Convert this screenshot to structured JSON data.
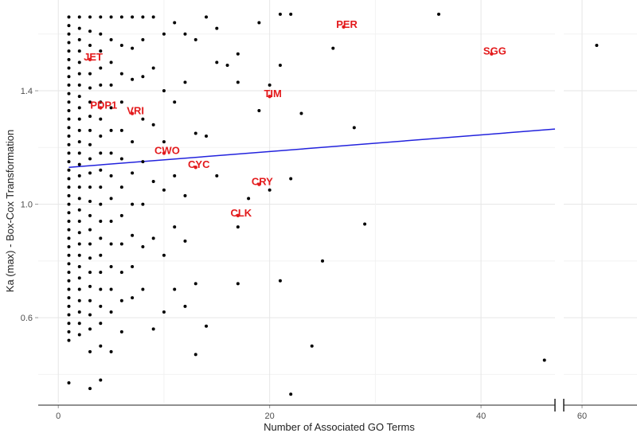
{
  "chart_data": {
    "type": "scatter",
    "title": "",
    "xlabel": "Number of Associated GO Terms",
    "ylabel": "Ka (max) - Box-Cox Transformation",
    "panels": [
      {
        "xlim": [
          -1.9,
          47
        ],
        "x_ticks": [
          0,
          20,
          40
        ],
        "x_tick_labels": [
          "0",
          "20",
          "40"
        ]
      },
      {
        "xlim": [
          57.5,
          67.5
        ],
        "x_ticks": [
          60
        ],
        "x_tick_labels": [
          "60"
        ]
      }
    ],
    "ylim": [
      0.3,
      1.72
    ],
    "y_ticks": [
      0.6,
      1.0,
      1.4
    ],
    "y_tick_labels": [
      "0.6",
      "1.0",
      "1.4"
    ],
    "grid": true,
    "highlight_color": "#e31a1c",
    "point_color": "#000000",
    "trend_color": "#2222dd",
    "trend_line": {
      "x": [
        1,
        47
      ],
      "y": [
        1.13,
        1.265
      ]
    },
    "highlighted": [
      {
        "label": "PER",
        "x": 27,
        "y": 1.625
      },
      {
        "label": "SGG",
        "x": 41,
        "y": 1.53
      },
      {
        "label": "JET",
        "x": 3,
        "y": 1.51
      },
      {
        "label": "TIM",
        "x": 20,
        "y": 1.38
      },
      {
        "label": "VRI",
        "x": 7,
        "y": 1.32
      },
      {
        "label": "PDP1",
        "x": 4,
        "y": 1.34
      },
      {
        "label": "CWO",
        "x": 10,
        "y": 1.18
      },
      {
        "label": "CYC",
        "x": 13,
        "y": 1.13
      },
      {
        "label": "CRY",
        "x": 19,
        "y": 1.07
      },
      {
        "label": "CLK",
        "x": 17,
        "y": 0.96
      }
    ],
    "points": [
      {
        "x": 1,
        "y": 1.66
      },
      {
        "x": 1,
        "y": 1.63
      },
      {
        "x": 1,
        "y": 1.6
      },
      {
        "x": 1,
        "y": 1.57
      },
      {
        "x": 1,
        "y": 1.54
      },
      {
        "x": 1,
        "y": 1.51
      },
      {
        "x": 1,
        "y": 1.48
      },
      {
        "x": 1,
        "y": 1.45
      },
      {
        "x": 1,
        "y": 1.42
      },
      {
        "x": 1,
        "y": 1.39
      },
      {
        "x": 1,
        "y": 1.36
      },
      {
        "x": 1,
        "y": 1.33
      },
      {
        "x": 1,
        "y": 1.3
      },
      {
        "x": 1,
        "y": 1.27
      },
      {
        "x": 1,
        "y": 1.24
      },
      {
        "x": 1,
        "y": 1.21
      },
      {
        "x": 1,
        "y": 1.18
      },
      {
        "x": 1,
        "y": 1.15
      },
      {
        "x": 1,
        "y": 1.12
      },
      {
        "x": 1,
        "y": 1.09
      },
      {
        "x": 1,
        "y": 1.06
      },
      {
        "x": 1,
        "y": 1.03
      },
      {
        "x": 1,
        "y": 1.0
      },
      {
        "x": 1,
        "y": 0.97
      },
      {
        "x": 1,
        "y": 0.94
      },
      {
        "x": 1,
        "y": 0.91
      },
      {
        "x": 1,
        "y": 0.88
      },
      {
        "x": 1,
        "y": 0.85
      },
      {
        "x": 1,
        "y": 0.82
      },
      {
        "x": 1,
        "y": 0.79
      },
      {
        "x": 1,
        "y": 0.76
      },
      {
        "x": 1,
        "y": 0.73
      },
      {
        "x": 1,
        "y": 0.7
      },
      {
        "x": 1,
        "y": 0.67
      },
      {
        "x": 1,
        "y": 0.64
      },
      {
        "x": 1,
        "y": 0.61
      },
      {
        "x": 1,
        "y": 0.58
      },
      {
        "x": 1,
        "y": 0.55
      },
      {
        "x": 1,
        "y": 0.52
      },
      {
        "x": 1,
        "y": 0.37
      },
      {
        "x": 2,
        "y": 1.66
      },
      {
        "x": 2,
        "y": 1.62
      },
      {
        "x": 2,
        "y": 1.58
      },
      {
        "x": 2,
        "y": 1.54
      },
      {
        "x": 2,
        "y": 1.5
      },
      {
        "x": 2,
        "y": 1.46
      },
      {
        "x": 2,
        "y": 1.42
      },
      {
        "x": 2,
        "y": 1.38
      },
      {
        "x": 2,
        "y": 1.34
      },
      {
        "x": 2,
        "y": 1.3
      },
      {
        "x": 2,
        "y": 1.26
      },
      {
        "x": 2,
        "y": 1.22
      },
      {
        "x": 2,
        "y": 1.18
      },
      {
        "x": 2,
        "y": 1.14
      },
      {
        "x": 2,
        "y": 1.1
      },
      {
        "x": 2,
        "y": 1.06
      },
      {
        "x": 2,
        "y": 1.02
      },
      {
        "x": 2,
        "y": 0.98
      },
      {
        "x": 2,
        "y": 0.94
      },
      {
        "x": 2,
        "y": 0.9
      },
      {
        "x": 2,
        "y": 0.86
      },
      {
        "x": 2,
        "y": 0.82
      },
      {
        "x": 2,
        "y": 0.78
      },
      {
        "x": 2,
        "y": 0.74
      },
      {
        "x": 2,
        "y": 0.7
      },
      {
        "x": 2,
        "y": 0.66
      },
      {
        "x": 2,
        "y": 0.62
      },
      {
        "x": 2,
        "y": 0.58
      },
      {
        "x": 2,
        "y": 0.54
      },
      {
        "x": 3,
        "y": 1.66
      },
      {
        "x": 3,
        "y": 1.61
      },
      {
        "x": 3,
        "y": 1.56
      },
      {
        "x": 3,
        "y": 1.46
      },
      {
        "x": 3,
        "y": 1.41
      },
      {
        "x": 3,
        "y": 1.36
      },
      {
        "x": 3,
        "y": 1.31
      },
      {
        "x": 3,
        "y": 1.26
      },
      {
        "x": 3,
        "y": 1.21
      },
      {
        "x": 3,
        "y": 1.16
      },
      {
        "x": 3,
        "y": 1.11
      },
      {
        "x": 3,
        "y": 1.06
      },
      {
        "x": 3,
        "y": 1.01
      },
      {
        "x": 3,
        "y": 0.96
      },
      {
        "x": 3,
        "y": 0.91
      },
      {
        "x": 3,
        "y": 0.86
      },
      {
        "x": 3,
        "y": 0.81
      },
      {
        "x": 3,
        "y": 0.76
      },
      {
        "x": 3,
        "y": 0.71
      },
      {
        "x": 3,
        "y": 0.66
      },
      {
        "x": 3,
        "y": 0.61
      },
      {
        "x": 3,
        "y": 0.56
      },
      {
        "x": 3,
        "y": 0.48
      },
      {
        "x": 3,
        "y": 0.35
      },
      {
        "x": 4,
        "y": 1.66
      },
      {
        "x": 4,
        "y": 1.6
      },
      {
        "x": 4,
        "y": 1.54
      },
      {
        "x": 4,
        "y": 1.48
      },
      {
        "x": 4,
        "y": 1.42
      },
      {
        "x": 4,
        "y": 1.36
      },
      {
        "x": 4,
        "y": 1.3
      },
      {
        "x": 4,
        "y": 1.24
      },
      {
        "x": 4,
        "y": 1.18
      },
      {
        "x": 4,
        "y": 1.12
      },
      {
        "x": 4,
        "y": 1.06
      },
      {
        "x": 4,
        "y": 1.0
      },
      {
        "x": 4,
        "y": 0.94
      },
      {
        "x": 4,
        "y": 0.88
      },
      {
        "x": 4,
        "y": 0.82
      },
      {
        "x": 4,
        "y": 0.76
      },
      {
        "x": 4,
        "y": 0.7
      },
      {
        "x": 4,
        "y": 0.64
      },
      {
        "x": 4,
        "y": 0.58
      },
      {
        "x": 4,
        "y": 0.5
      },
      {
        "x": 4,
        "y": 0.38
      },
      {
        "x": 5,
        "y": 1.66
      },
      {
        "x": 5,
        "y": 1.58
      },
      {
        "x": 5,
        "y": 1.5
      },
      {
        "x": 5,
        "y": 1.42
      },
      {
        "x": 5,
        "y": 1.34
      },
      {
        "x": 5,
        "y": 1.26
      },
      {
        "x": 5,
        "y": 1.18
      },
      {
        "x": 5,
        "y": 1.1
      },
      {
        "x": 5,
        "y": 1.02
      },
      {
        "x": 5,
        "y": 0.94
      },
      {
        "x": 5,
        "y": 0.86
      },
      {
        "x": 5,
        "y": 0.78
      },
      {
        "x": 5,
        "y": 0.7
      },
      {
        "x": 5,
        "y": 0.62
      },
      {
        "x": 5,
        "y": 0.48
      },
      {
        "x": 6,
        "y": 1.66
      },
      {
        "x": 6,
        "y": 1.56
      },
      {
        "x": 6,
        "y": 1.46
      },
      {
        "x": 6,
        "y": 1.36
      },
      {
        "x": 6,
        "y": 1.26
      },
      {
        "x": 6,
        "y": 1.16
      },
      {
        "x": 6,
        "y": 1.06
      },
      {
        "x": 6,
        "y": 0.96
      },
      {
        "x": 6,
        "y": 0.86
      },
      {
        "x": 6,
        "y": 0.76
      },
      {
        "x": 6,
        "y": 0.66
      },
      {
        "x": 6,
        "y": 0.55
      },
      {
        "x": 7,
        "y": 1.66
      },
      {
        "x": 7,
        "y": 1.55
      },
      {
        "x": 7,
        "y": 1.44
      },
      {
        "x": 7,
        "y": 1.22
      },
      {
        "x": 7,
        "y": 1.11
      },
      {
        "x": 7,
        "y": 1.0
      },
      {
        "x": 7,
        "y": 0.89
      },
      {
        "x": 7,
        "y": 0.78
      },
      {
        "x": 7,
        "y": 0.67
      },
      {
        "x": 8,
        "y": 1.66
      },
      {
        "x": 8,
        "y": 1.58
      },
      {
        "x": 8,
        "y": 1.45
      },
      {
        "x": 8,
        "y": 1.3
      },
      {
        "x": 8,
        "y": 1.15
      },
      {
        "x": 8,
        "y": 1.0
      },
      {
        "x": 8,
        "y": 0.85
      },
      {
        "x": 8,
        "y": 0.7
      },
      {
        "x": 9,
        "y": 1.66
      },
      {
        "x": 9,
        "y": 1.48
      },
      {
        "x": 9,
        "y": 1.28
      },
      {
        "x": 9,
        "y": 1.08
      },
      {
        "x": 9,
        "y": 0.88
      },
      {
        "x": 9,
        "y": 0.56
      },
      {
        "x": 10,
        "y": 1.6
      },
      {
        "x": 10,
        "y": 1.4
      },
      {
        "x": 10,
        "y": 1.22
      },
      {
        "x": 10,
        "y": 1.05
      },
      {
        "x": 10,
        "y": 0.82
      },
      {
        "x": 10,
        "y": 0.62
      },
      {
        "x": 11,
        "y": 1.64
      },
      {
        "x": 11,
        "y": 1.36
      },
      {
        "x": 11,
        "y": 1.1
      },
      {
        "x": 11,
        "y": 0.92
      },
      {
        "x": 11,
        "y": 0.7
      },
      {
        "x": 12,
        "y": 1.6
      },
      {
        "x": 12,
        "y": 1.43
      },
      {
        "x": 12,
        "y": 1.03
      },
      {
        "x": 12,
        "y": 0.87
      },
      {
        "x": 12,
        "y": 0.64
      },
      {
        "x": 13,
        "y": 1.58
      },
      {
        "x": 13,
        "y": 1.25
      },
      {
        "x": 13,
        "y": 0.72
      },
      {
        "x": 13,
        "y": 0.47
      },
      {
        "x": 14,
        "y": 1.66
      },
      {
        "x": 14,
        "y": 1.24
      },
      {
        "x": 14,
        "y": 0.57
      },
      {
        "x": 15,
        "y": 1.62
      },
      {
        "x": 15,
        "y": 1.5
      },
      {
        "x": 15,
        "y": 1.1
      },
      {
        "x": 16,
        "y": 1.49
      },
      {
        "x": 17,
        "y": 1.53
      },
      {
        "x": 17,
        "y": 1.43
      },
      {
        "x": 17,
        "y": 0.92
      },
      {
        "x": 17,
        "y": 0.72
      },
      {
        "x": 18,
        "y": 1.02
      },
      {
        "x": 19,
        "y": 1.64
      },
      {
        "x": 19,
        "y": 1.33
      },
      {
        "x": 20,
        "y": 1.42
      },
      {
        "x": 20,
        "y": 1.05
      },
      {
        "x": 21,
        "y": 1.67
      },
      {
        "x": 21,
        "y": 1.49
      },
      {
        "x": 21,
        "y": 0.73
      },
      {
        "x": 22,
        "y": 1.67
      },
      {
        "x": 22,
        "y": 1.09
      },
      {
        "x": 22,
        "y": 0.33
      },
      {
        "x": 23,
        "y": 1.32
      },
      {
        "x": 24,
        "y": 0.5
      },
      {
        "x": 25,
        "y": 0.8
      },
      {
        "x": 26,
        "y": 1.55
      },
      {
        "x": 28,
        "y": 1.27
      },
      {
        "x": 29,
        "y": 0.93
      },
      {
        "x": 36,
        "y": 1.67
      },
      {
        "x": 46,
        "y": 0.45
      },
      {
        "x": 62,
        "y": 1.56
      }
    ]
  }
}
